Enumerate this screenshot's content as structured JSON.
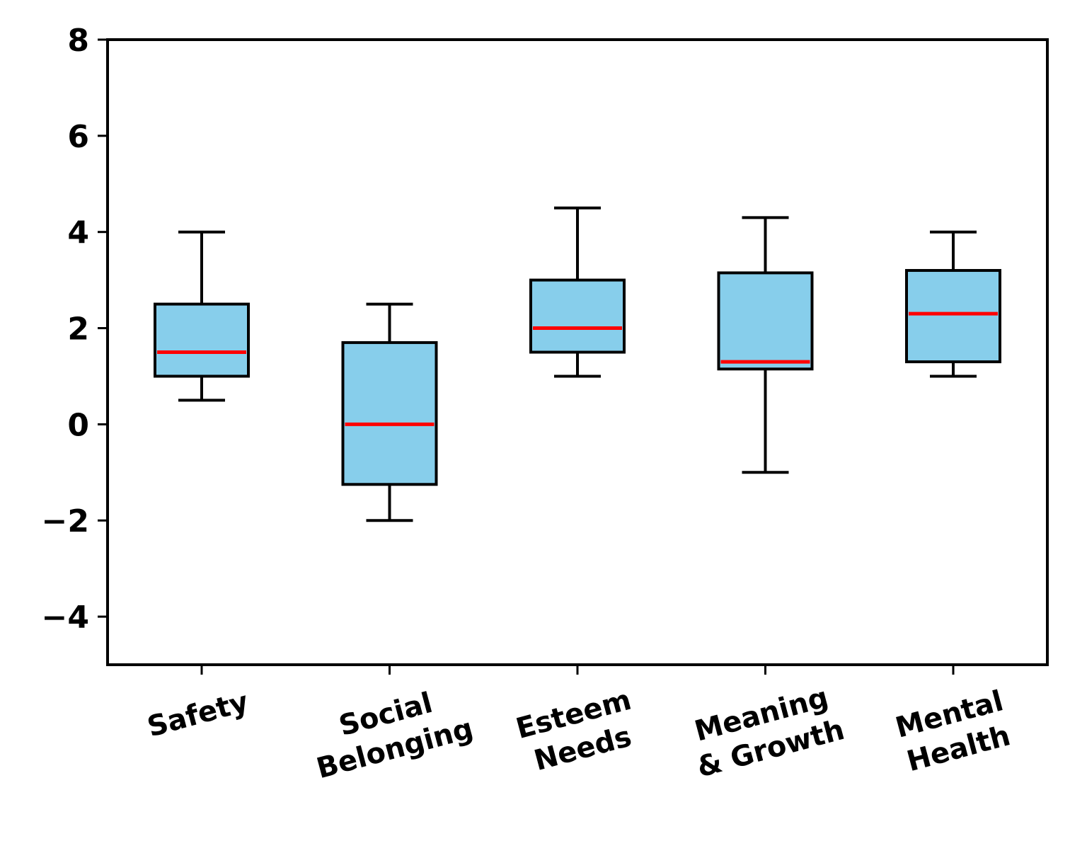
{
  "chart_data": {
    "type": "box",
    "title": "",
    "xlabel": "",
    "ylabel": "",
    "ylim": [
      -5,
      8
    ],
    "yticks": [
      -4,
      -2,
      0,
      2,
      4,
      6,
      8
    ],
    "grid": false,
    "categories": [
      [
        "Safety"
      ],
      [
        "Social",
        "Belonging"
      ],
      [
        "Esteem",
        "Needs"
      ],
      [
        "Meaning",
        "& Growth"
      ],
      [
        "Mental",
        "Health"
      ]
    ],
    "boxes": [
      {
        "whisker_low": 0.5,
        "q1": 1.0,
        "median": 1.5,
        "q3": 2.5,
        "whisker_high": 4.0
      },
      {
        "whisker_low": -2.0,
        "q1": -1.25,
        "median": 0.0,
        "q3": 1.7,
        "whisker_high": 2.5
      },
      {
        "whisker_low": 1.0,
        "q1": 1.5,
        "median": 2.0,
        "q3": 3.0,
        "whisker_high": 4.5
      },
      {
        "whisker_low": -1.0,
        "q1": 1.15,
        "median": 1.3,
        "q3": 3.15,
        "whisker_high": 4.3
      },
      {
        "whisker_low": 1.0,
        "q1": 1.3,
        "median": 2.3,
        "q3": 3.2,
        "whisker_high": 4.0
      }
    ],
    "colors": {
      "box_fill": "#87CEEB",
      "median": "#FF0000",
      "edge": "#000000"
    }
  }
}
